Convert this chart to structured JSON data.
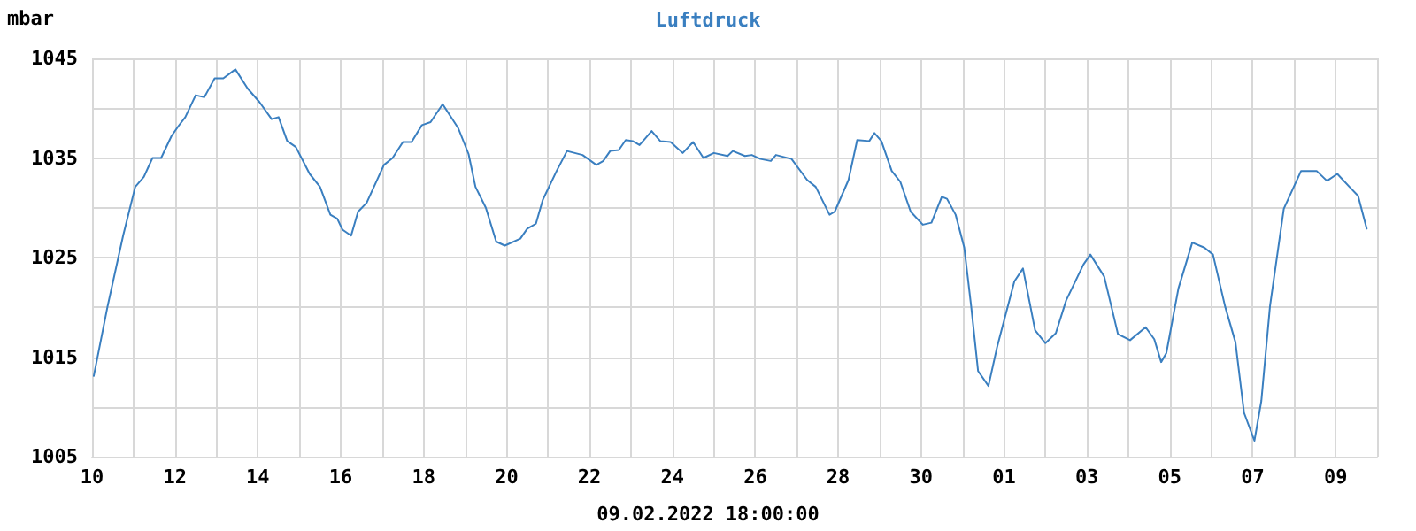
{
  "chart_data": {
    "type": "line",
    "title": "Luftdruck",
    "ylabel": "mbar",
    "annotations": [
      "09.02.2022 18:00:00"
    ],
    "xlim": [
      "2022-01-10",
      "2022-02-10"
    ],
    "xticks": [
      {
        "value": "2022-01-10",
        "label": "10"
      },
      {
        "value": "2022-01-11",
        "label": null
      },
      {
        "value": "2022-01-12",
        "label": "12"
      },
      {
        "value": "2022-01-13",
        "label": null
      },
      {
        "value": "2022-01-14",
        "label": "14"
      },
      {
        "value": "2022-01-15",
        "label": null
      },
      {
        "value": "2022-01-16",
        "label": "16"
      },
      {
        "value": "2022-01-17",
        "label": null
      },
      {
        "value": "2022-01-18",
        "label": "18"
      },
      {
        "value": "2022-01-19",
        "label": null
      },
      {
        "value": "2022-01-20",
        "label": "20"
      },
      {
        "value": "2022-01-21",
        "label": null
      },
      {
        "value": "2022-01-22",
        "label": "22"
      },
      {
        "value": "2022-01-23",
        "label": null
      },
      {
        "value": "2022-01-24",
        "label": "24"
      },
      {
        "value": "2022-01-25",
        "label": null
      },
      {
        "value": "2022-01-26",
        "label": "26"
      },
      {
        "value": "2022-01-27",
        "label": null
      },
      {
        "value": "2022-01-28",
        "label": "28"
      },
      {
        "value": "2022-01-29",
        "label": null
      },
      {
        "value": "2022-01-30",
        "label": "30"
      },
      {
        "value": "2022-01-31",
        "label": null
      },
      {
        "value": "2022-02-01",
        "label": "01"
      },
      {
        "value": "2022-02-02",
        "label": null
      },
      {
        "value": "2022-02-03",
        "label": "03"
      },
      {
        "value": "2022-02-04",
        "label": null
      },
      {
        "value": "2022-02-05",
        "label": "05"
      },
      {
        "value": "2022-02-06",
        "label": null
      },
      {
        "value": "2022-02-07",
        "label": "07"
      },
      {
        "value": "2022-02-08",
        "label": null
      },
      {
        "value": "2022-02-09",
        "label": "09"
      },
      {
        "value": "2022-02-10",
        "label": null
      }
    ],
    "ylim": [
      1005,
      1045
    ],
    "yticks": [
      1005,
      {
        "value": 1010,
        "label": null
      },
      1015,
      {
        "value": 1020,
        "label": null
      },
      1025,
      {
        "value": 1030,
        "label": null
      },
      1035,
      {
        "value": 1040,
        "label": null
      },
      1045
    ],
    "grid": true,
    "marker": "none",
    "line_style": "solid",
    "x": [
      "2022-01-10T01:00",
      "2022-01-10T09:00",
      "2022-01-10T18:00",
      "2022-01-11T01:00",
      "2022-01-11T06:00",
      "2022-01-11T11:00",
      "2022-01-11T16:00",
      "2022-01-11T22:00",
      "2022-01-12T02:00",
      "2022-01-12T06:00",
      "2022-01-12T12:00",
      "2022-01-12T17:00",
      "2022-01-12T23:00",
      "2022-01-13T04:00",
      "2022-01-13T11:00",
      "2022-01-13T18:00",
      "2022-01-14T01:00",
      "2022-01-14T08:00",
      "2022-01-14T12:00",
      "2022-01-14T17:00",
      "2022-01-14T22:00",
      "2022-01-15T06:00",
      "2022-01-15T12:00",
      "2022-01-15T18:00",
      "2022-01-15T22:00",
      "2022-01-16T01:00",
      "2022-01-16T06:00",
      "2022-01-16T10:00",
      "2022-01-16T15:00",
      "2022-01-17T01:00",
      "2022-01-17T06:00",
      "2022-01-17T12:00",
      "2022-01-17T17:00",
      "2022-01-17T23:00",
      "2022-01-18T04:00",
      "2022-01-18T11:00",
      "2022-01-18T20:00",
      "2022-01-19T02:00",
      "2022-01-19T06:00",
      "2022-01-19T12:00",
      "2022-01-19T18:00",
      "2022-01-19T23:00",
      "2022-01-20T08:00",
      "2022-01-20T12:00",
      "2022-01-20T17:00",
      "2022-01-20T21:00",
      "2022-01-21T05:00",
      "2022-01-21T11:00",
      "2022-01-21T20:00",
      "2022-01-22T04:00",
      "2022-01-22T08:00",
      "2022-01-22T12:00",
      "2022-01-22T17:00",
      "2022-01-22T21:00",
      "2022-01-23T01:00",
      "2022-01-23T05:00",
      "2022-01-23T12:00",
      "2022-01-23T17:00",
      "2022-01-23T23:00",
      "2022-01-24T06:00",
      "2022-01-24T12:00",
      "2022-01-24T18:00",
      "2022-01-25T00:00",
      "2022-01-25T08:00",
      "2022-01-25T11:00",
      "2022-01-25T18:00",
      "2022-01-25T22:00",
      "2022-01-26T03:00",
      "2022-01-26T09:00",
      "2022-01-26T12:00",
      "2022-01-26T21:00",
      "2022-01-27T06:00",
      "2022-01-27T11:00",
      "2022-01-27T19:00",
      "2022-01-27T22:00",
      "2022-01-28T06:00",
      "2022-01-28T11:00",
      "2022-01-28T18:00",
      "2022-01-28T21:00",
      "2022-01-29T01:00",
      "2022-01-29T07:00",
      "2022-01-29T12:00",
      "2022-01-29T18:00",
      "2022-01-30T01:00",
      "2022-01-30T06:00",
      "2022-01-30T12:00",
      "2022-01-30T15:00",
      "2022-01-30T20:00",
      "2022-01-31T01:00",
      "2022-01-31T05:00",
      "2022-01-31T09:00",
      "2022-01-31T15:00",
      "2022-01-31T20:00",
      "2022-02-01T06:00",
      "2022-02-01T11:00",
      "2022-02-01T18:00",
      "2022-02-02T00:00",
      "2022-02-02T06:00",
      "2022-02-02T12:00",
      "2022-02-02T22:00",
      "2022-02-03T02:00",
      "2022-02-03T10:00",
      "2022-02-03T18:00",
      "2022-02-04T01:00",
      "2022-02-04T10:00",
      "2022-02-04T15:00",
      "2022-02-04T19:00",
      "2022-02-04T22:00",
      "2022-02-05T05:00",
      "2022-02-05T13:00",
      "2022-02-05T20:00",
      "2022-02-06T01:00",
      "2022-02-06T08:00",
      "2022-02-06T14:00",
      "2022-02-06T19:00",
      "2022-02-07T01:00",
      "2022-02-07T05:00",
      "2022-02-07T10:00",
      "2022-02-07T18:00",
      "2022-02-08T04:00",
      "2022-02-08T13:00",
      "2022-02-08T19:00",
      "2022-02-09T01:00",
      "2022-02-09T08:00",
      "2022-02-09T13:00",
      "2022-02-09T18:00"
    ],
    "series": [
      {
        "color": "#3a7fc0",
        "values": [
          1013.1,
          1020.1,
          1027.2,
          1032.1,
          1033.1,
          1035.0,
          1035.0,
          1037.2,
          1038.2,
          1039.1,
          1041.3,
          1041.1,
          1043.0,
          1043.0,
          1043.9,
          1042.0,
          1040.6,
          1038.9,
          1039.1,
          1036.7,
          1036.1,
          1033.4,
          1032.1,
          1029.3,
          1028.9,
          1027.8,
          1027.2,
          1029.6,
          1030.5,
          1034.3,
          1035.0,
          1036.6,
          1036.6,
          1038.3,
          1038.6,
          1040.4,
          1038.0,
          1035.4,
          1032.1,
          1030.0,
          1026.6,
          1026.2,
          1026.9,
          1027.9,
          1028.4,
          1030.8,
          1033.7,
          1035.7,
          1035.3,
          1034.3,
          1034.7,
          1035.7,
          1035.8,
          1036.8,
          1036.7,
          1036.3,
          1037.7,
          1036.7,
          1036.6,
          1035.5,
          1036.6,
          1035.0,
          1035.5,
          1035.2,
          1035.7,
          1035.2,
          1035.3,
          1034.9,
          1034.7,
          1035.3,
          1034.9,
          1032.8,
          1032.1,
          1029.3,
          1029.6,
          1032.8,
          1036.8,
          1036.7,
          1037.5,
          1036.7,
          1033.7,
          1032.6,
          1029.6,
          1028.3,
          1028.5,
          1031.1,
          1030.9,
          1029.3,
          1026.0,
          1020.1,
          1013.6,
          1012.1,
          1016.0,
          1022.6,
          1023.9,
          1017.7,
          1016.4,
          1017.4,
          1020.7,
          1024.3,
          1025.3,
          1023.1,
          1017.3,
          1016.7,
          1018.0,
          1016.8,
          1014.5,
          1015.4,
          1021.9,
          1026.5,
          1026.0,
          1025.3,
          1020.1,
          1016.5,
          1009.4,
          1006.6,
          1010.6,
          1020.1,
          1029.9,
          1033.7,
          1033.7,
          1032.7,
          1033.4,
          1032.1,
          1031.2,
          1027.9
        ]
      }
    ]
  }
}
